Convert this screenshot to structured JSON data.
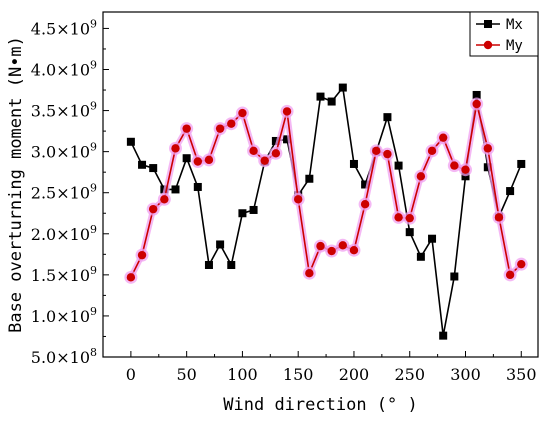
{
  "chart_data": {
    "type": "line",
    "xlabel": "Wind direction (° )",
    "ylabel": "Base overturning moment (N•m)",
    "xlim": [
      -25,
      365
    ],
    "ylim": [
      500000000,
      4700000000
    ],
    "x_ticks": [
      0,
      50,
      100,
      150,
      200,
      250,
      300,
      350
    ],
    "x_tick_labels": [
      "0",
      "50",
      "100",
      "150",
      "200",
      "250",
      "300",
      "350"
    ],
    "y_ticks": [
      500000000,
      1000000000,
      1500000000,
      2000000000,
      2500000000,
      3000000000,
      3500000000,
      4000000000,
      4500000000
    ],
    "y_tick_labels": [
      {
        "mant": "5.0",
        "exp": "8"
      },
      {
        "mant": "1.0",
        "exp": "9"
      },
      {
        "mant": "1.5",
        "exp": "9"
      },
      {
        "mant": "2.0",
        "exp": "9"
      },
      {
        "mant": "2.5",
        "exp": "9"
      },
      {
        "mant": "3.0",
        "exp": "9"
      },
      {
        "mant": "3.5",
        "exp": "9"
      },
      {
        "mant": "4.0",
        "exp": "9"
      },
      {
        "mant": "4.5",
        "exp": "9"
      }
    ],
    "times_symbol": "×10",
    "legend_position": "top-right",
    "grid": false,
    "x": [
      0,
      10,
      20,
      30,
      40,
      50,
      60,
      70,
      80,
      90,
      100,
      110,
      120,
      130,
      140,
      150,
      160,
      170,
      180,
      190,
      200,
      210,
      220,
      230,
      240,
      250,
      260,
      270,
      280,
      290,
      300,
      310,
      320,
      330,
      340,
      350
    ],
    "series": [
      {
        "name": "Mx",
        "color": "#000000",
        "marker": "square",
        "values": [
          3120000000,
          2840000000,
          2800000000,
          2540000000,
          2540000000,
          2920000000,
          2570000000,
          1620000000,
          1870000000,
          1620000000,
          2250000000,
          2290000000,
          2880000000,
          3130000000,
          3150000000,
          2470000000,
          2670000000,
          3670000000,
          3610000000,
          3780000000,
          2850000000,
          2600000000,
          3000000000,
          3420000000,
          2830000000,
          2020000000,
          1720000000,
          1940000000,
          760000000,
          1480000000,
          2700000000,
          3690000000,
          2810000000,
          2210000000,
          2520000000,
          2850000000
        ]
      },
      {
        "name": "My",
        "color": "#cc0000",
        "glow": "#f0a0f0",
        "marker": "circle",
        "values": [
          1470000000,
          1740000000,
          2300000000,
          2420000000,
          3040000000,
          3280000000,
          2880000000,
          2900000000,
          3280000000,
          3340000000,
          3470000000,
          3010000000,
          2890000000,
          2980000000,
          3490000000,
          2420000000,
          1520000000,
          1850000000,
          1790000000,
          1860000000,
          1800000000,
          2360000000,
          3010000000,
          2970000000,
          2200000000,
          2190000000,
          2700000000,
          3010000000,
          3170000000,
          2830000000,
          2780000000,
          3580000000,
          3040000000,
          2200000000,
          1500000000,
          1630000000
        ]
      }
    ]
  }
}
